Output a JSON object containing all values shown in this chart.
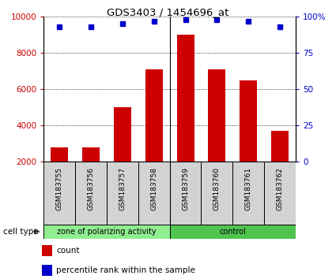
{
  "title": "GDS3403 / 1454696_at",
  "samples": [
    "GSM183755",
    "GSM183756",
    "GSM183757",
    "GSM183758",
    "GSM183759",
    "GSM183760",
    "GSM183761",
    "GSM183762"
  ],
  "counts": [
    2800,
    2800,
    5000,
    7100,
    9000,
    7100,
    6500,
    3700
  ],
  "percentiles": [
    93,
    93,
    95,
    97,
    98,
    98,
    97,
    93
  ],
  "bar_color": "#CC0000",
  "dot_color": "#0000CC",
  "ylim_left": [
    2000,
    10000
  ],
  "ylim_right": [
    0,
    100
  ],
  "yticks_left": [
    2000,
    4000,
    6000,
    8000,
    10000
  ],
  "yticks_right": [
    0,
    25,
    50,
    75,
    100
  ],
  "legend_count_label": "count",
  "legend_pct_label": "percentile rank within the sample",
  "cell_type_label": "cell type",
  "sample_bg_color": "#d3d3d3",
  "group_left_color": "#90EE90",
  "group_right_color": "#4fc44f",
  "group_boundary": 4,
  "group_left_label": "zone of polarizing activity",
  "group_right_label": "control",
  "n_samples": 8
}
